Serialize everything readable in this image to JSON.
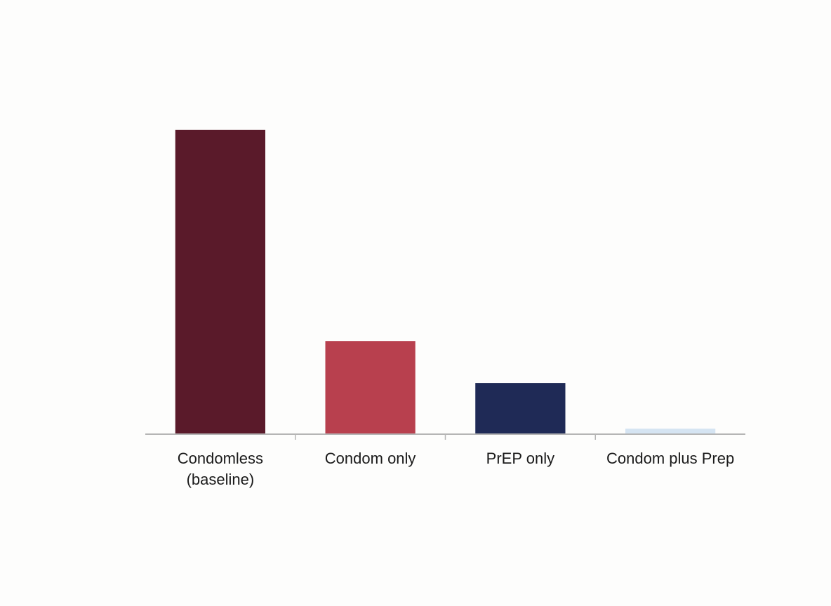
{
  "chart_data": {
    "type": "bar",
    "categories": [
      "Condomless (baseline)",
      "Condom only",
      "PrEP only",
      "Condom plus Prep"
    ],
    "values": [
      100,
      30.6,
      16.8,
      1.8
    ],
    "colors": [
      "#5a1a2a",
      "#b8404e",
      "#1f2a56",
      "#d5e4f2"
    ],
    "ylim": [
      0,
      100
    ]
  }
}
